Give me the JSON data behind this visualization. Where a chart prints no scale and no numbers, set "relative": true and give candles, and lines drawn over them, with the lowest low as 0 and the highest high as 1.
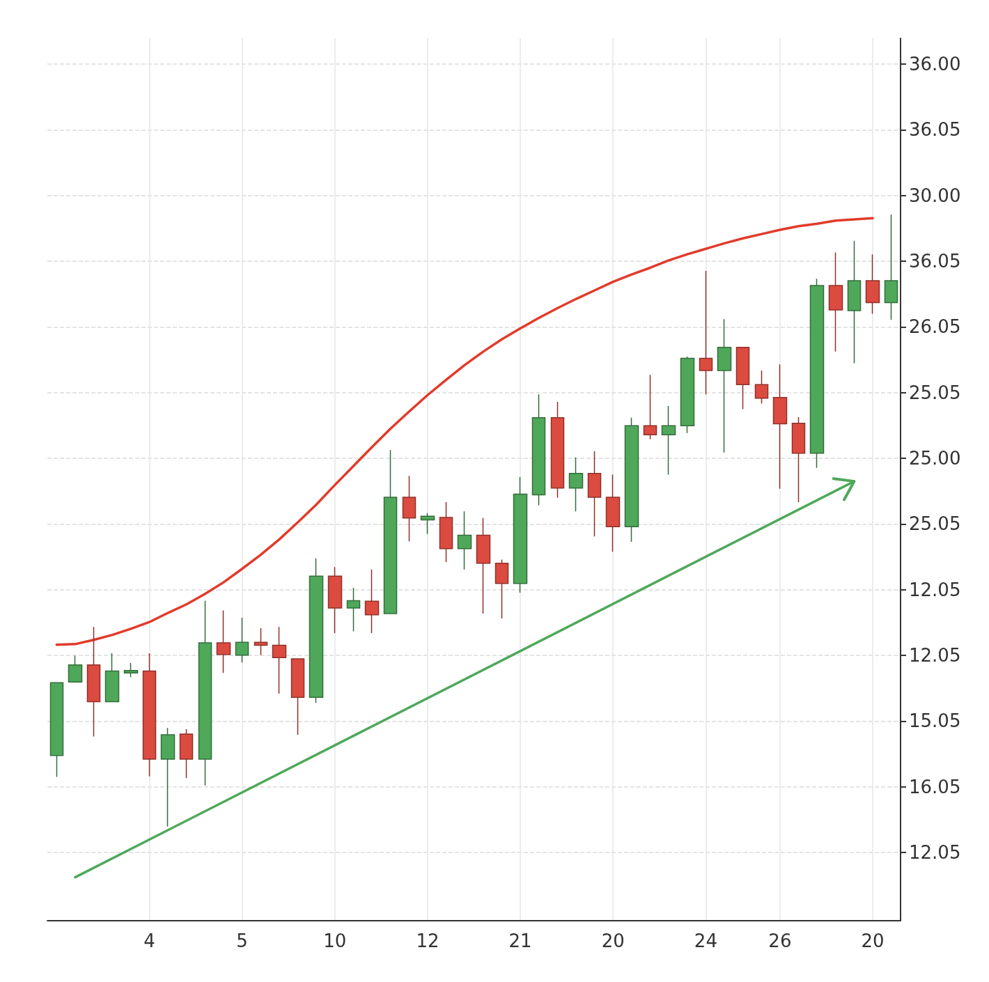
{
  "chart_data": {
    "type": "candlestick",
    "categories": [
      null,
      null,
      null,
      null,
      null,
      "4",
      null,
      null,
      null,
      null,
      "5",
      null,
      null,
      null,
      null,
      "10",
      null,
      null,
      null,
      null,
      "12",
      null,
      null,
      null,
      null,
      "21",
      null,
      null,
      null,
      null,
      "20",
      null,
      null,
      null,
      null,
      "24",
      null,
      null,
      null,
      "26",
      null,
      null,
      null,
      null,
      "20",
      null
    ],
    "relative": true,
    "y_categories": [
      "36.00",
      "36.05",
      "30.00",
      "36.05",
      "26.05",
      "25.05",
      "25.00",
      "25.05",
      "12.05",
      "12.05",
      "15.05",
      "16.05",
      "12.05"
    ],
    "grid": true,
    "series": [
      {
        "ohlc": [
          [
            0.116,
            0.235,
            0.081,
            0.235
          ],
          [
            0.236,
            0.279,
            0.236,
            0.264
          ],
          [
            0.264,
            0.326,
            0.147,
            0.204
          ],
          [
            0.204,
            0.283,
            0.204,
            0.254
          ],
          [
            0.251,
            0.267,
            0.244,
            0.255
          ],
          [
            0.254,
            0.283,
            0.082,
            0.11
          ],
          [
            0.11,
            0.161,
            0,
            0.15
          ],
          [
            0.151,
            0.159,
            0.079,
            0.11
          ],
          [
            0.11,
            0.369,
            0.067,
            0.3
          ],
          [
            0.3,
            0.353,
            0.251,
            0.281
          ],
          [
            0.28,
            0.341,
            0.268,
            0.301
          ],
          [
            0.301,
            0.324,
            0.28,
            0.296
          ],
          [
            0.296,
            0.326,
            0.217,
            0.276
          ],
          [
            0.274,
            0.274,
            0.15,
            0.211
          ],
          [
            0.211,
            0.438,
            0.202,
            0.409
          ],
          [
            0.409,
            0.424,
            0.316,
            0.357
          ],
          [
            0.357,
            0.39,
            0.319,
            0.369
          ],
          [
            0.368,
            0.42,
            0.316,
            0.346
          ],
          [
            0.348,
            0.615,
            0.348,
            0.538
          ],
          [
            0.538,
            0.573,
            0.466,
            0.504
          ],
          [
            0.501,
            0.512,
            0.478,
            0.507
          ],
          [
            0.505,
            0.53,
            0.432,
            0.454
          ],
          [
            0.454,
            0.515,
            0.42,
            0.476
          ],
          [
            0.476,
            0.504,
            0.348,
            0.43
          ],
          [
            0.43,
            0.436,
            0.34,
            0.397
          ],
          [
            0.397,
            0.571,
            0.382,
            0.543
          ],
          [
            0.542,
            0.706,
            0.525,
            0.668
          ],
          [
            0.668,
            0.694,
            0.537,
            0.553
          ],
          [
            0.553,
            0.603,
            0.515,
            0.577
          ],
          [
            0.577,
            0.613,
            0.474,
            0.538
          ],
          [
            0.538,
            0.575,
            0.449,
            0.49
          ],
          [
            0.49,
            0.668,
            0.465,
            0.655
          ],
          [
            0.655,
            0.738,
            0.633,
            0.64
          ],
          [
            0.64,
            0.687,
            0.575,
            0.655
          ],
          [
            0.655,
            0.768,
            0.643,
            0.765
          ],
          [
            0.765,
            0.908,
            0.706,
            0.745
          ],
          [
            0.745,
            0.829,
            0.611,
            0.783
          ],
          [
            0.783,
            0.783,
            0.682,
            0.722
          ],
          [
            0.722,
            0.745,
            0.691,
            0.7
          ],
          [
            0.701,
            0.755,
            0.552,
            0.658
          ],
          [
            0.659,
            0.669,
            0.53,
            0.61
          ],
          [
            0.61,
            0.895,
            0.586,
            0.884
          ],
          [
            0.884,
            0.938,
            0.776,
            0.844
          ],
          [
            0.843,
            0.957,
            0.757,
            0.892
          ],
          [
            0.892,
            0.935,
            0.838,
            0.856
          ],
          [
            0.856,
            1,
            0.828,
            0.892
          ]
        ],
        "colors": [
          "#4fa85a",
          "#4fa85a",
          "#dc4b40",
          "#4fa85a",
          "#4fa85a",
          "#dc4b40",
          "#4fa85a",
          "#dc4b40",
          "#4fa85a",
          "#dc4b40",
          "#4fa85a",
          "#dc4b40",
          "#dc4b40",
          "#dc4b40",
          "#4fa85a",
          "#dc4b40",
          "#4fa85a",
          "#dc4b40",
          "#4fa85a",
          "#dc4b40",
          "#4fa85a",
          "#dc4b40",
          "#4fa85a",
          "#dc4b40",
          "#dc4b40",
          "#4fa85a",
          "#4fa85a",
          "#dc4b40",
          "#4fa85a",
          "#dc4b40",
          "#dc4b40",
          "#4fa85a",
          "#dc4b40",
          "#4fa85a",
          "#4fa85a",
          "#dc4b40",
          "#4fa85a",
          "#dc4b40",
          "#dc4b40",
          "#dc4b40",
          "#dc4b40",
          "#4fa85a",
          "#dc4b40",
          "#4fa85a",
          "#dc4b40",
          "#4fa85a"
        ]
      },
      {
        "type": "line",
        "color": "#e23a2a",
        "marker": "none",
        "values": [
          0.297,
          0.298,
          0.305,
          0.313,
          0.323,
          0.334,
          0.349,
          0.363,
          0.38,
          0.399,
          0.421,
          0.444,
          0.469,
          0.497,
          0.526,
          0.558,
          0.589,
          0.62,
          0.65,
          0.678,
          0.705,
          0.73,
          0.754,
          0.776,
          0.796,
          0.814,
          0.831,
          0.847,
          0.862,
          0.876,
          0.89,
          0.902,
          0.913,
          0.925,
          0.935,
          0.944,
          0.953,
          0.961,
          0.968,
          0.975,
          0.981,
          0.985,
          0.99,
          0.992,
          0.994,
          null
        ]
      },
      {
        "type": "line",
        "color": "#4fa85a",
        "marker": "none",
        "values": [
          null,
          -0.083,
          null,
          null,
          null,
          null,
          null,
          null,
          null,
          null,
          null,
          null,
          null,
          null,
          null,
          null,
          null,
          null,
          null,
          null,
          null,
          null,
          null,
          null,
          null,
          null,
          null,
          null,
          null,
          null,
          null,
          null,
          null,
          null,
          null,
          null,
          null,
          null,
          null,
          null,
          null,
          null,
          null,
          0.564,
          null,
          null
        ]
      }
    ]
  }
}
